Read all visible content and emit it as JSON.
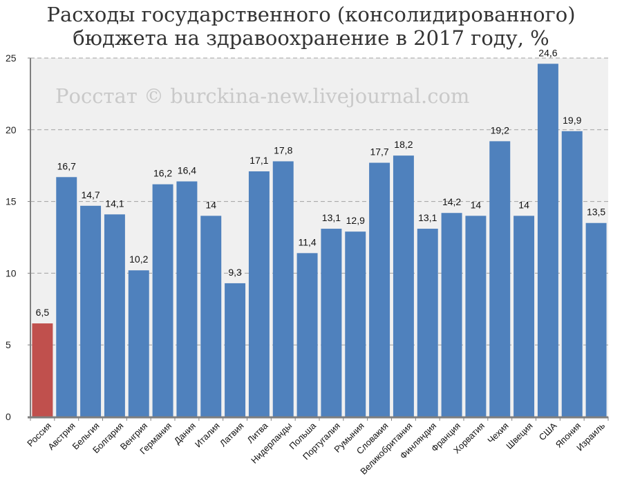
{
  "chart_data": {
    "type": "bar",
    "title_line1": "Расходы государственного (консолидированного)",
    "title_line2": "бюджета на здравоохранение в 2017 году, %",
    "watermark": "Росстат © burckina-new.livejournal.com",
    "categories": [
      "Россия",
      "Австрия",
      "Бельгия",
      "Болгария",
      "Венгрия",
      "Германия",
      "Дания",
      "Италия",
      "Латвия",
      "Литва",
      "Нидерланды",
      "Польша",
      "Португалия",
      "Румыния",
      "Словакия",
      "Великобритания",
      "Финляндия",
      "Франция",
      "Хорватия",
      "Чехия",
      "Швеция",
      "США",
      "Япония",
      "Израиль"
    ],
    "values": [
      6.5,
      16.7,
      14.7,
      14.1,
      10.2,
      16.2,
      16.4,
      14,
      9.3,
      17.1,
      17.8,
      11.4,
      13.1,
      12.9,
      17.7,
      18.2,
      13.1,
      14.2,
      14,
      19.2,
      14,
      24.6,
      19.9,
      13.5
    ],
    "value_labels": [
      "6,5",
      "16,7",
      "14,7",
      "14,1",
      "10,2",
      "16,2",
      "16,4",
      "14",
      "9,3",
      "17,1",
      "17,8",
      "11,4",
      "13,1",
      "12,9",
      "17,7",
      "18,2",
      "13,1",
      "14,2",
      "14",
      "19,2",
      "14",
      "24,6",
      "19,9",
      "13,5"
    ],
    "y_ticks": [
      0,
      5,
      10,
      15,
      20,
      25
    ],
    "ylim": [
      0,
      25
    ],
    "grid": true,
    "colors": {
      "bar": "#4f81bd",
      "highlight": "#c0504d",
      "plot_bg": "#f0f0f0",
      "grid": "#a0a0a0"
    },
    "highlight_category": "Россия"
  }
}
